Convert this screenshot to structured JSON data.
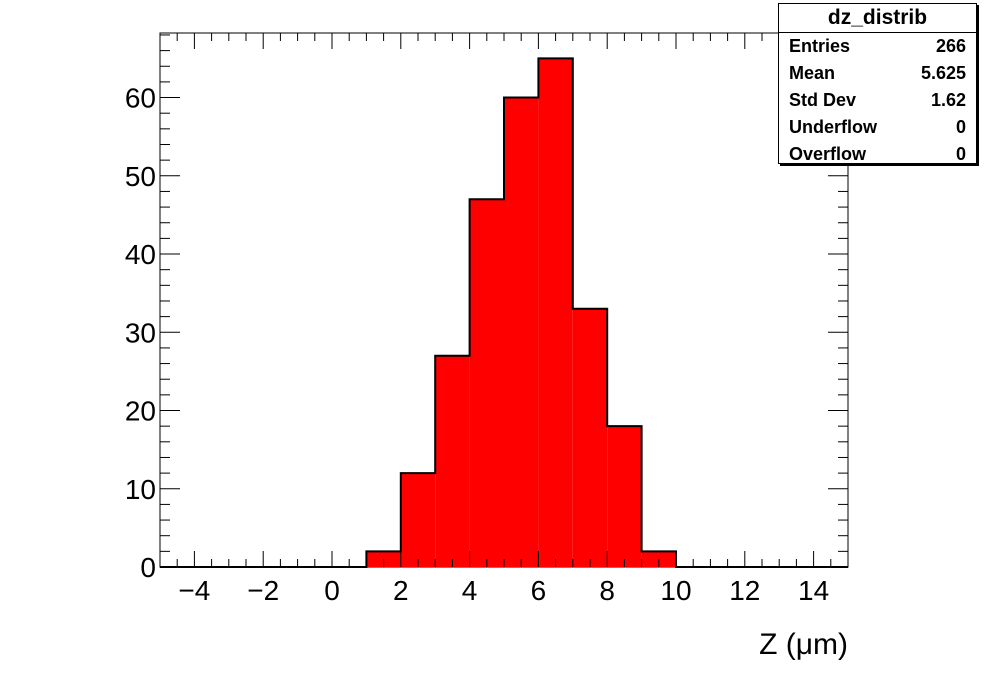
{
  "chart_data": {
    "type": "bar",
    "histogram_name": "dz_distrib",
    "bin_edges": [
      -5,
      -4,
      -3,
      -2,
      -1,
      0,
      1,
      2,
      3,
      4,
      5,
      6,
      7,
      8,
      9,
      10,
      11,
      12,
      13,
      14,
      15
    ],
    "values": [
      0,
      0,
      0,
      0,
      0,
      0,
      2,
      12,
      27,
      47,
      60,
      65,
      33,
      18,
      2,
      0,
      0,
      0,
      0,
      0
    ],
    "xlabel": "Z (μm)",
    "ylabel": "",
    "xlim": [
      -5,
      15
    ],
    "ylim": [
      0,
      68.25
    ],
    "x_ticks": [
      -4,
      -2,
      0,
      2,
      4,
      6,
      8,
      10,
      12,
      14
    ],
    "x_tick_labels": [
      "−4",
      "−2",
      "0",
      "2",
      "4",
      "6",
      "8",
      "10",
      "12",
      "14"
    ],
    "y_ticks": [
      0,
      10,
      20,
      30,
      40,
      50,
      60
    ],
    "y_tick_labels": [
      "0",
      "10",
      "20",
      "30",
      "40",
      "50",
      "60"
    ],
    "fill_color": "#ff0000",
    "line_color": "#000000",
    "grid": false,
    "legend": "none",
    "stats": {
      "title": "dz_distrib",
      "rows": [
        {
          "label": "Entries",
          "value": "266"
        },
        {
          "label": "Mean",
          "value": "5.625"
        },
        {
          "label": "Std Dev",
          "value": "1.62"
        },
        {
          "label": "Underflow",
          "value": "0"
        },
        {
          "label": "Overflow",
          "value": "0"
        }
      ]
    }
  }
}
